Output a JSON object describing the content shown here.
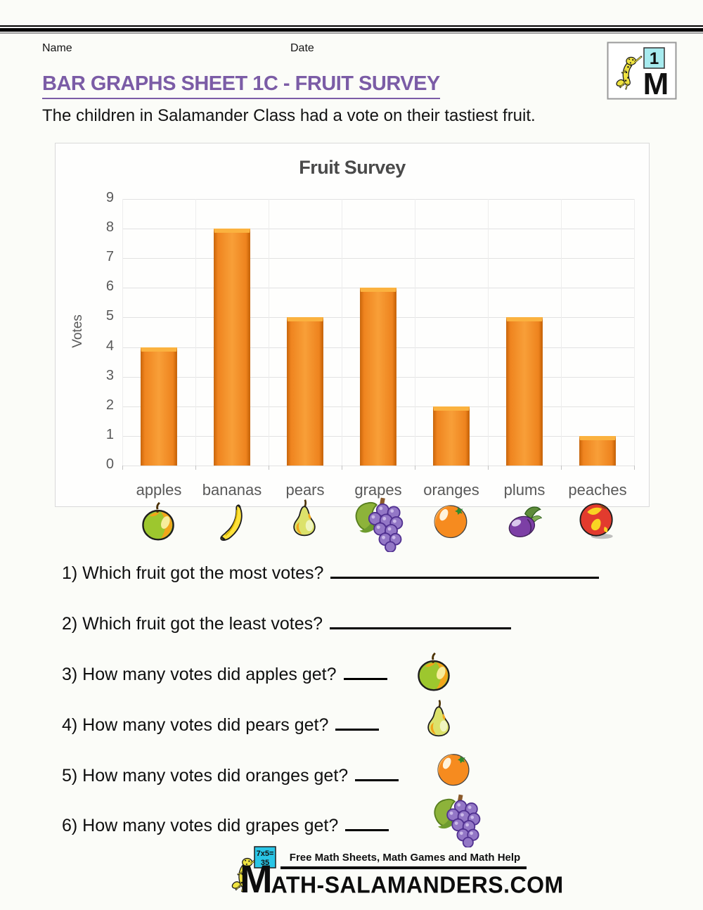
{
  "header": {
    "name_label": "Name",
    "date_label": "Date",
    "title": "BAR GRAPHS SHEET 1C - FRUIT SURVEY",
    "subtitle": "The children in Salamander Class had a vote on their tastiest fruit.",
    "accent_color": "#7B5CA6"
  },
  "corner_badge": {
    "number": "1",
    "letter": "M"
  },
  "chart_data": {
    "type": "bar",
    "title": "Fruit Survey",
    "xlabel": "",
    "ylabel": "Votes",
    "categories": [
      "apples",
      "bananas",
      "pears",
      "grapes",
      "oranges",
      "plums",
      "peaches"
    ],
    "values": [
      4,
      8,
      5,
      6,
      2,
      5,
      1
    ],
    "ylim": [
      0,
      9
    ],
    "ytick_step": 1,
    "grid": true,
    "legend": false,
    "bar_color": "#F28A24",
    "bar_edge_color": "#C96408",
    "bar_top_color": "#FBB23F",
    "grid_color": "#E2E2E2",
    "axis_text_color": "#595959",
    "title_color": "#4A4A4A"
  },
  "questions": [
    {
      "label": "1) Which fruit got the most votes?",
      "blank_width": 382,
      "icon": null
    },
    {
      "label": "2) Which fruit got the least votes?",
      "blank_width": 258,
      "icon": null
    },
    {
      "label": "3) How many votes did apples get?",
      "blank_width": 62,
      "icon": "apple"
    },
    {
      "label": "4) How many votes did pears get?",
      "blank_width": 62,
      "icon": "pear"
    },
    {
      "label": "5) How many votes did oranges get?",
      "blank_width": 62,
      "icon": "orange"
    },
    {
      "label": "6) How many votes did grapes get?",
      "blank_width": 62,
      "icon": "grapes"
    }
  ],
  "footer": {
    "tagline": "Free Math Sheets, Math Games and Math Help",
    "board_line1": "7x5=",
    "board_line2": "35",
    "site_initial": "M",
    "site_rest": "ATH-SALAMANDERS.COM"
  }
}
